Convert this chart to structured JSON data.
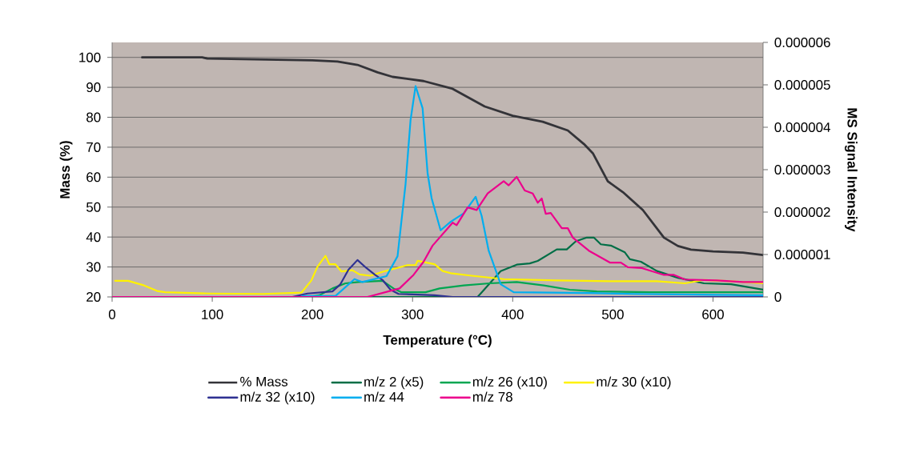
{
  "chart_data": {
    "type": "line",
    "xlabel": "Temperature (°C)",
    "ylabel": "Mass (%)",
    "y2label": "MS Signal Intensity",
    "xlim": [
      0,
      650
    ],
    "xticks": [
      0,
      100,
      200,
      300,
      400,
      500,
      600
    ],
    "ylim": [
      20,
      105
    ],
    "yticks": [
      20,
      30,
      40,
      50,
      60,
      70,
      80,
      90,
      100
    ],
    "y2lim": [
      0,
      6e-06
    ],
    "y2ticks": [
      {
        "value": 0,
        "label": "0"
      },
      {
        "value": 1e-06,
        "label": "0.000001"
      },
      {
        "value": 2e-06,
        "label": "0.000002"
      },
      {
        "value": 3e-06,
        "label": "0.000003"
      },
      {
        "value": 4e-06,
        "label": "0.000004"
      },
      {
        "value": 5e-06,
        "label": "0.000005"
      },
      {
        "value": 6e-06,
        "label": "0.000006"
      }
    ],
    "grid": "y",
    "legend": "bottom",
    "marker": "none",
    "line_style": "solid",
    "series": [
      {
        "name": "% Mass",
        "color": "#333338",
        "x": [
          30,
          90,
          95,
          200,
          225,
          245,
          265,
          280,
          311,
          340,
          372,
          400,
          430,
          455,
          471,
          480,
          495,
          510,
          530,
          551,
          565,
          578,
          600,
          630,
          650
        ],
        "values": [
          100,
          100,
          99.6,
          99,
          98.6,
          97.5,
          95,
          93.5,
          92.1,
          89.5,
          83.6,
          80.5,
          78.5,
          75.6,
          71.1,
          68,
          58.6,
          55,
          49,
          39.8,
          37,
          35.8,
          35.2,
          34.8,
          34
        ]
      },
      {
        "name": "m/z 2 (x5)",
        "color": "#006e46",
        "axis": "y2",
        "x": [
          0,
          365,
          388,
          404,
          417,
          425,
          444,
          454,
          463,
          474,
          481,
          488,
          498,
          512,
          517,
          528,
          544,
          565,
          591,
          618,
          650
        ],
        "values": [
          0,
          0,
          6.1e-07,
          7.6e-07,
          7.9e-07,
          8.5e-07,
          1.12e-06,
          1.12e-06,
          1.31e-06,
          1.4e-06,
          1.4e-06,
          1.24e-06,
          1.21e-06,
          1.05e-06,
          8.9e-07,
          8.3e-07,
          6.1e-07,
          4.5e-07,
          3.2e-07,
          3e-07,
          1.7e-07
        ]
      },
      {
        "name": "m/z 26 (x10)",
        "color": "#00a651",
        "axis": "y2",
        "x": [
          0,
          195,
          207,
          220,
          233,
          246,
          270,
          281,
          289,
          313,
          327,
          351,
          377,
          404,
          431,
          457,
          484,
          537,
          650
        ],
        "values": [
          0,
          0,
          4e-08,
          2e-07,
          3.2e-07,
          3.5e-07,
          3.8e-07,
          2e-07,
          1.1e-07,
          1.1e-07,
          2e-07,
          2.7e-07,
          3.2e-07,
          3.5e-07,
          2.7e-07,
          1.7e-07,
          1.3e-07,
          1.1e-07,
          1.1e-07
        ]
      },
      {
        "name": "m/z 30 (x10)",
        "color": "#fff200",
        "axis": "y2",
        "x": [
          3,
          16,
          32,
          45,
          53,
          98,
          151,
          189,
          199,
          205,
          213,
          217,
          223,
          229,
          240,
          247,
          258,
          271,
          284,
          295,
          303,
          305,
          322,
          330,
          338,
          359,
          391,
          444,
          497,
          544,
          572,
          591,
          618,
          650
        ],
        "values": [
          3.8e-07,
          3.8e-07,
          2.7e-07,
          1.4e-07,
          1.1e-07,
          8e-08,
          7e-08,
          1e-07,
          3.9e-07,
          7.1e-07,
          9.7e-07,
          7.7e-07,
          7.7e-07,
          6e-07,
          6.3e-07,
          5.3e-07,
          5e-07,
          6e-07,
          6.8e-07,
          7.5e-07,
          7.5e-07,
          8.5e-07,
          7.7e-07,
          6.1e-07,
          5.6e-07,
          5e-07,
          4.2e-07,
          3.9e-07,
          3.7e-07,
          3.7e-07,
          3.2e-07,
          4e-07,
          3.7e-07,
          3.2e-07
        ]
      },
      {
        "name": "m/z 32 (x10)",
        "color": "#2e3192",
        "axis": "y2",
        "x": [
          0,
          180,
          195,
          220,
          228,
          236,
          245,
          254,
          262,
          270,
          278,
          286,
          322,
          340,
          650
        ],
        "values": [
          0,
          0,
          8e-08,
          1.3e-07,
          3e-07,
          6.4e-07,
          8.7e-07,
          6.8e-07,
          5.3e-07,
          4e-07,
          1.7e-07,
          7e-08,
          4e-08,
          0,
          0
        ]
      },
      {
        "name": "m/z 44",
        "color": "#00aeef",
        "axis": "y2",
        "x": [
          190,
          223,
          242,
          250,
          274,
          285,
          293,
          298,
          303,
          310,
          315,
          319,
          328,
          338,
          351,
          363,
          369,
          376,
          388,
          401,
          478,
          520,
          600,
          650
        ],
        "values": [
          2e-08,
          2e-08,
          4.2e-07,
          3.5e-07,
          4.9e-07,
          9.6e-07,
          2.66e-06,
          4.17e-06,
          4.97e-06,
          4.45e-06,
          2.92e-06,
          2.33e-06,
          1.57e-06,
          1.77e-06,
          1.97e-06,
          2.36e-06,
          1.91e-06,
          1.09e-06,
          3e-07,
          1.1e-07,
          9e-08,
          7e-08,
          5e-08,
          4e-08
        ]
      },
      {
        "name": "m/z 78",
        "color": "#ec008c",
        "axis": "y2",
        "x": [
          0,
          255,
          287,
          301,
          311,
          320,
          340,
          344,
          355,
          364,
          375,
          391,
          396,
          404,
          412,
          420,
          425,
          429,
          433,
          438,
          449,
          455,
          460,
          476,
          497,
          508,
          515,
          529,
          551,
          561,
          572,
          604,
          630,
          650
        ],
        "values": [
          0,
          0,
          2e-07,
          5.2e-07,
          8.3e-07,
          1.21e-06,
          1.75e-06,
          1.69e-06,
          2.11e-06,
          2.05e-06,
          2.44e-06,
          2.73e-06,
          2.63e-06,
          2.83e-06,
          2.51e-06,
          2.44e-06,
          2.22e-06,
          2.32e-06,
          1.96e-06,
          1.98e-06,
          1.62e-06,
          1.62e-06,
          1.4e-06,
          1.09e-06,
          8.1e-07,
          8.1e-07,
          7e-07,
          6.8e-07,
          5.2e-07,
          5.2e-07,
          4.1e-07,
          3.9e-07,
          3.5e-07,
          3.5e-07
        ]
      }
    ]
  }
}
